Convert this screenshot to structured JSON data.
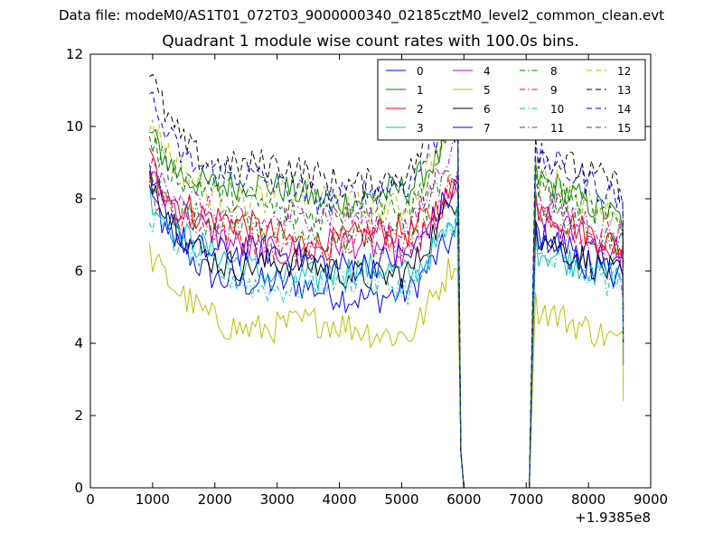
{
  "figure": {
    "suptitle": "Data file: modeM0/AS1T01_072T03_9000000340_02185cztM0_level2_common_clean.evt"
  },
  "chart_data": {
    "type": "line",
    "title": "Quadrant 1 module wise count rates with 100.0s bins.",
    "xlabel": "",
    "ylabel": "",
    "xlim": [
      0,
      9000
    ],
    "ylim": [
      0,
      12
    ],
    "x_offset_label": "+1.9385e8",
    "x_ticks": [
      "0",
      "1000",
      "2000",
      "3000",
      "4000",
      "5000",
      "6000",
      "7000",
      "8000",
      "9000"
    ],
    "y_ticks": [
      "0",
      "2",
      "4",
      "6",
      "8",
      "10",
      "12"
    ],
    "grid": false,
    "legend_position": "top-right",
    "segments": [
      [
        950,
        5900
      ],
      [
        7150,
        8550
      ]
    ],
    "gap": [
      [
        6000,
        0
      ],
      [
        7050,
        0
      ]
    ],
    "series": [
      {
        "name": "0",
        "color": "#0000ff",
        "dash": "solid",
        "start": 8.7,
        "level": 5.4,
        "wave": 0.3,
        "second": 7.0,
        "decay": 0.4
      },
      {
        "name": "1",
        "color": "#008000",
        "dash": "solid",
        "start": 9.9,
        "level": 8.1,
        "wave": 0.35,
        "second": 8.6,
        "decay": 0.6
      },
      {
        "name": "2",
        "color": "#ff0000",
        "dash": "solid",
        "start": 9.3,
        "level": 6.9,
        "wave": 0.35,
        "second": 7.8,
        "decay": 0.6
      },
      {
        "name": "3",
        "color": "#00bfbf",
        "dash": "solid",
        "start": 8.3,
        "level": 5.9,
        "wave": 0.3,
        "second": 6.6,
        "decay": 0.4
      },
      {
        "name": "4",
        "color": "#bf00bf",
        "dash": "solid",
        "start": 8.6,
        "level": 6.6,
        "wave": 0.3,
        "second": 7.5,
        "decay": 0.5
      },
      {
        "name": "5",
        "color": "#bfbf00",
        "dash": "solid",
        "start": 6.3,
        "level": 4.4,
        "wave": 0.3,
        "second": 5.0,
        "decay": 0.5
      },
      {
        "name": "6",
        "color": "#000000",
        "dash": "solid",
        "start": 8.6,
        "level": 6.0,
        "wave": 0.3,
        "second": 7.0,
        "decay": 0.6
      },
      {
        "name": "7",
        "color": "#0000ff",
        "dash": "solid",
        "start": 8.0,
        "level": 6.3,
        "wave": 0.3,
        "second": 6.8,
        "decay": 0.5
      },
      {
        "name": "8",
        "color": "#008000",
        "dash": "dashdot",
        "start": 8.9,
        "level": 7.0,
        "wave": 0.3,
        "second": 7.8,
        "decay": 0.5
      },
      {
        "name": "9",
        "color": "#ff0000",
        "dash": "dashdot",
        "start": 8.5,
        "level": 6.7,
        "wave": 0.3,
        "second": 7.5,
        "decay": 0.5
      },
      {
        "name": "10",
        "color": "#00bfbf",
        "dash": "dashdot",
        "start": 7.7,
        "level": 5.6,
        "wave": 0.3,
        "second": 6.4,
        "decay": 0.4
      },
      {
        "name": "11",
        "color": "#bf00bf",
        "dash": "dashdot",
        "start": 8.7,
        "level": 7.4,
        "wave": 0.3,
        "second": 8.0,
        "decay": 0.5
      },
      {
        "name": "12",
        "color": "#bfbf00",
        "dash": "dashed",
        "start": 10.0,
        "level": 7.9,
        "wave": 0.35,
        "second": 8.7,
        "decay": 0.6
      },
      {
        "name": "13",
        "color": "#000000",
        "dash": "dashed",
        "start": 11.4,
        "level": 8.6,
        "wave": 0.4,
        "second": 9.3,
        "decay": 0.5
      },
      {
        "name": "14",
        "color": "#0000ff",
        "dash": "dashed",
        "start": 11.0,
        "level": 8.2,
        "wave": 0.35,
        "second": 9.2,
        "decay": 0.6
      },
      {
        "name": "15",
        "color": "#008000",
        "dash": "dashed",
        "start": 9.9,
        "level": 7.7,
        "wave": 0.35,
        "second": 8.4,
        "decay": 0.6
      }
    ]
  }
}
